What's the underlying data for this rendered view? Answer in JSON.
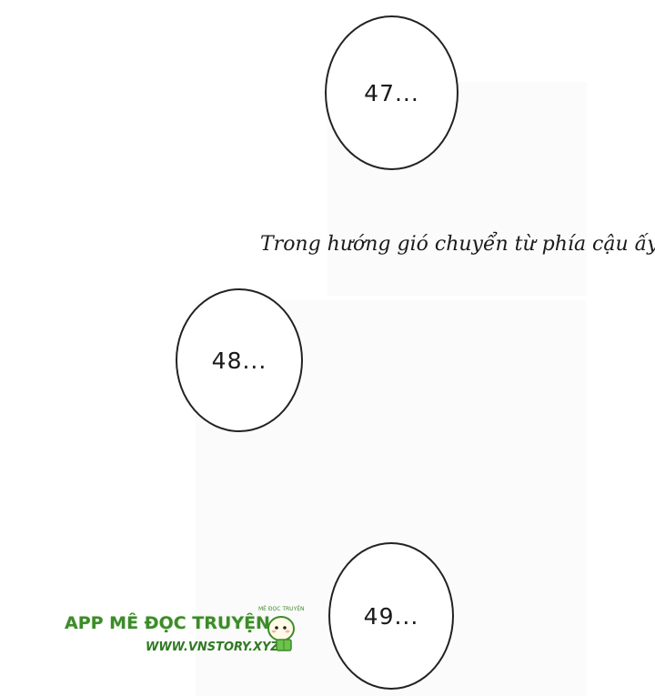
{
  "bubbles": [
    {
      "label": "47..."
    },
    {
      "label": "48..."
    },
    {
      "label": "49..."
    }
  ],
  "narration": "Trong hướng gió chuyển từ phía cậu ấy,",
  "watermark": {
    "title": "APP MÊ ĐỌC TRUYỆN",
    "url": "WWW.VNSTORY.XYZ",
    "small_caption": "MÊ ĐỌC TRUYỆN"
  },
  "colors": {
    "watermark_green": "#3d8b2a",
    "ink": "#1a1a1a"
  }
}
